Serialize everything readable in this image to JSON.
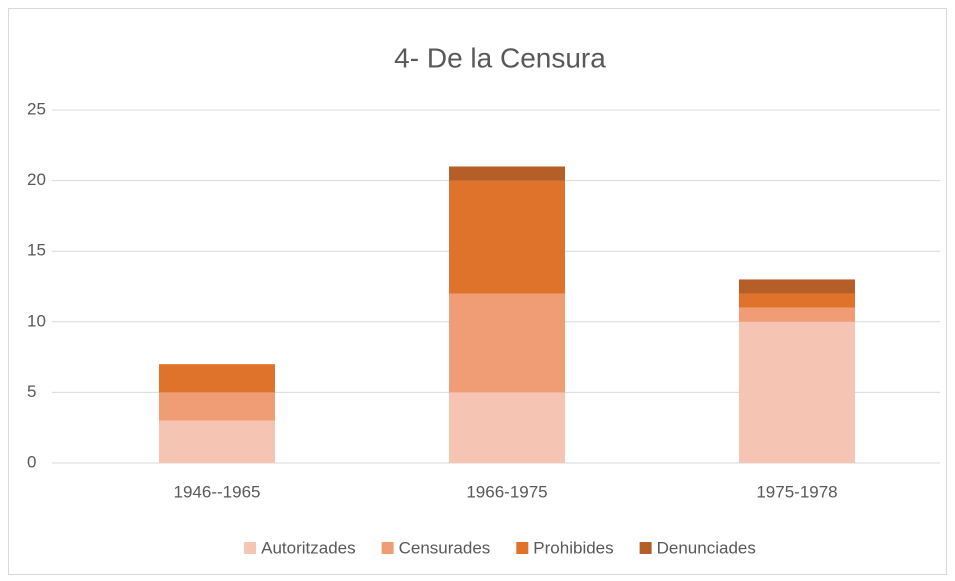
{
  "chart_data": {
    "type": "bar",
    "stacked": true,
    "title": "4- De la Censura",
    "categories": [
      "1946--1965",
      "1966-1975",
      "1975-1978"
    ],
    "series": [
      {
        "name": "Autoritzades",
        "color": "#f5c4b2",
        "values": [
          3,
          5,
          10
        ]
      },
      {
        "name": "Censurades",
        "color": "#f09c75",
        "values": [
          2,
          7,
          1
        ]
      },
      {
        "name": "Prohibides",
        "color": "#e0732c",
        "values": [
          2,
          8,
          1
        ]
      },
      {
        "name": "Denunciades",
        "color": "#b65e27",
        "values": [
          0,
          1,
          1
        ]
      }
    ],
    "ylim": [
      0,
      25
    ],
    "yticks": [
      0,
      5,
      10,
      15,
      20,
      25
    ],
    "grid": true,
    "legend": "bottom"
  }
}
